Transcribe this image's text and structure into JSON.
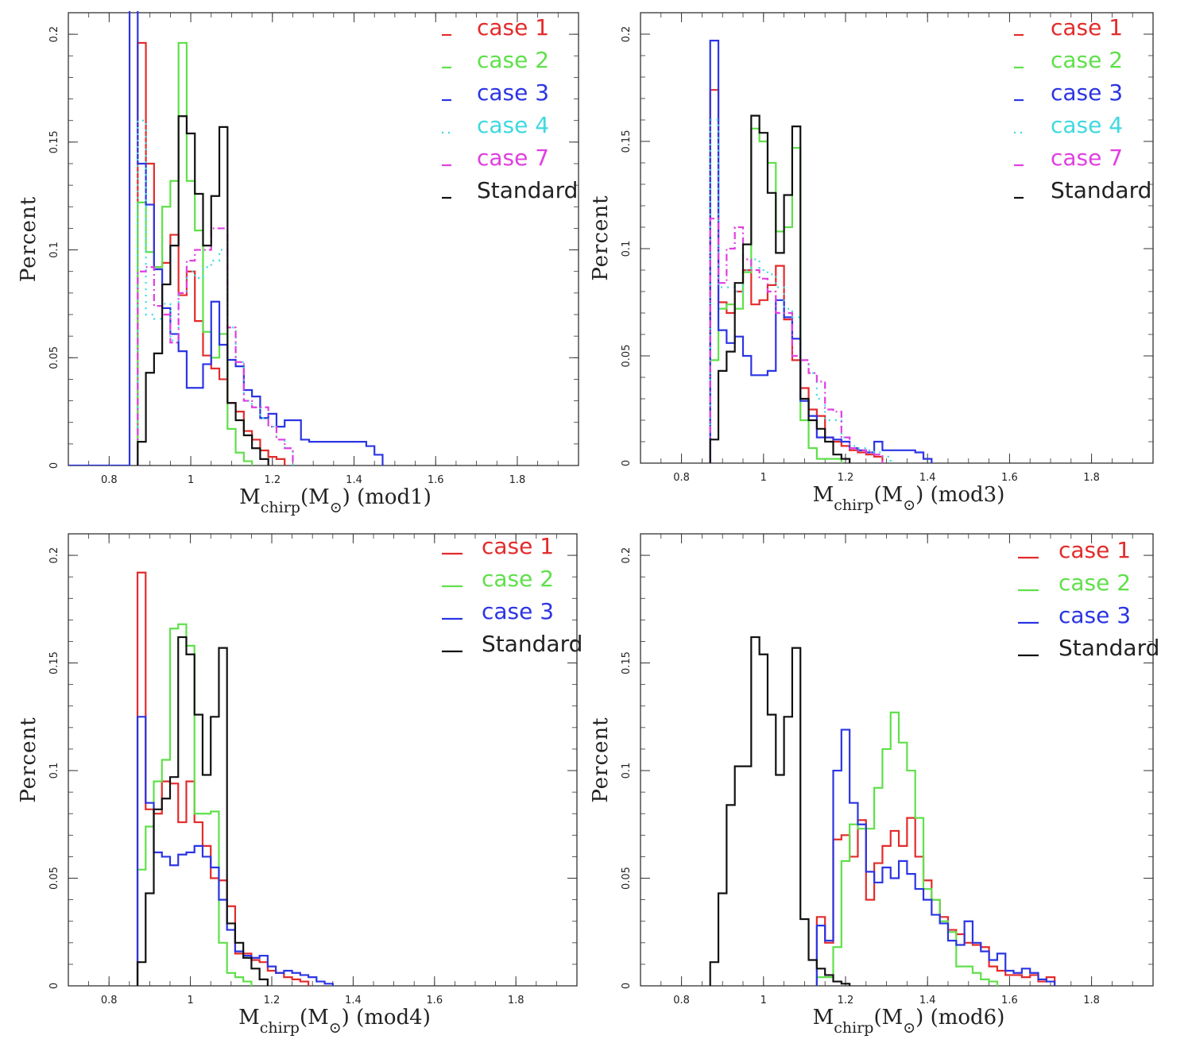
{
  "chart_data": [
    {
      "type": "histogram",
      "panel": "mod1",
      "xlabel": "M_chirp(M_⊙) (mod1)",
      "xlabel_parts": {
        "main": "M",
        "sub": "chirp",
        "paren_open": "(M",
        "sun_sub": "⊙",
        "paren_close": ")",
        "model": " (mod1)"
      },
      "ylabel": "Percent",
      "xlim": [
        0.7,
        1.95
      ],
      "ylim": [
        0,
        0.21
      ],
      "xticks": [
        "0.8",
        "1",
        "1.2",
        "1.4",
        "1.6",
        "1.8"
      ],
      "yticks": [
        "0",
        "0.05",
        "0.1",
        "0.15",
        "0.2"
      ],
      "legend_position": "top-right",
      "bin_start": 0.87,
      "bin_width": 0.02,
      "series": [
        {
          "name": "case 1",
          "color": "#e32b2b",
          "style": "solid",
          "values": [
            0.196,
            0.14,
            0.092,
            0.094,
            0.107,
            0.079,
            0.09,
            0.067,
            0.051,
            0.045,
            0.04,
            0.029,
            0.025,
            0.016,
            0.012,
            0.007,
            0.004,
            0.003
          ]
        },
        {
          "name": "case 2",
          "color": "#5fe04a",
          "style": "solid",
          "values": [
            0.122,
            0.099,
            0.092,
            0.12,
            0.132,
            0.196,
            0.132,
            0.109,
            0.062,
            0.05,
            0.061,
            0.017,
            0.006,
            0.002
          ]
        },
        {
          "name": "case 3",
          "color": "#2b35e3",
          "style": "solid",
          "pre_spike_from": 0.7,
          "spike_at": 0.85,
          "values": [
            0.14,
            0.121,
            0.091,
            0.073,
            0.061,
            0.053,
            0.036,
            0.036,
            0.047,
            0.076,
            0.056,
            0.049,
            0.046,
            0.035,
            0.032,
            0.022,
            0.024,
            0.018,
            0.021,
            0.021,
            0.012,
            0.011,
            0.011,
            0.011,
            0.011,
            0.011,
            0.011,
            0.011,
            0.009,
            0.005
          ]
        },
        {
          "name": "case 4",
          "color": "#3fd9e0",
          "style": "dotted",
          "values": [
            0.16,
            0.07,
            0.068,
            0.075,
            0.058,
            0.08,
            0.09,
            0.087,
            0.092,
            0.095,
            0.1,
            0.064,
            0.048,
            0.03,
            0.027,
            0.022,
            0.018,
            0.012,
            0.008
          ]
        },
        {
          "name": "case 7",
          "color": "#e03fe0",
          "style": "dashdot",
          "values": [
            0.09,
            0.092,
            0.074,
            0.07,
            0.057,
            0.08,
            0.095,
            0.1,
            0.1,
            0.11,
            0.11,
            0.064,
            0.048,
            0.03,
            0.027,
            0.027,
            0.018,
            0.012,
            0.008
          ]
        },
        {
          "name": "Standard",
          "color": "#111111",
          "style": "solid",
          "values": [
            0.011,
            0.043,
            0.052,
            0.084,
            0.102,
            0.162,
            0.154,
            0.126,
            0.102,
            0.125,
            0.157,
            0.029,
            0.021,
            0.014,
            0.008,
            0.003
          ]
        }
      ]
    },
    {
      "type": "histogram",
      "panel": "mod3",
      "xlabel": "M_chirp(M_⊙) (mod3)",
      "xlabel_parts": {
        "main": "M",
        "sub": "chirp",
        "paren_open": "(M",
        "sun_sub": "⊙",
        "paren_close": ")",
        "model": " (mod3)"
      },
      "ylabel": "Percent",
      "xlim": [
        0.7,
        1.95
      ],
      "ylim": [
        0,
        0.21
      ],
      "xticks": [
        "0.8",
        "1",
        "1.2",
        "1.4",
        "1.6",
        "1.8"
      ],
      "yticks": [
        "0",
        "0.05",
        "0.1",
        "0.15",
        "0.2"
      ],
      "legend_position": "top-right",
      "bin_start": 0.87,
      "bin_width": 0.02,
      "series": [
        {
          "name": "case 1",
          "color": "#e32b2b",
          "style": "solid",
          "values": [
            0.174,
            0.075,
            0.07,
            0.08,
            0.09,
            0.074,
            0.076,
            0.083,
            0.092,
            0.067,
            0.048,
            0.035,
            0.025,
            0.022,
            0.012,
            0.01,
            0.008,
            0.006,
            0.005,
            0.004,
            0.003
          ]
        },
        {
          "name": "case 2",
          "color": "#5fe04a",
          "style": "solid",
          "values": [
            0.048,
            0.072,
            0.074,
            0.072,
            0.089,
            0.156,
            0.15,
            0.14,
            0.108,
            0.11,
            0.147,
            0.02,
            0.007,
            0.002,
            0.002,
            0.002
          ]
        },
        {
          "name": "case 3",
          "color": "#2b35e3",
          "style": "solid",
          "values": [
            0.197,
            0.062,
            0.056,
            0.059,
            0.05,
            0.041,
            0.041,
            0.043,
            0.076,
            0.068,
            0.058,
            0.029,
            0.022,
            0.012,
            0.012,
            0.011,
            0.01,
            0.007,
            0.006,
            0.005,
            0.01,
            0.006,
            0.006,
            0.006,
            0.006,
            0.005,
            0.002
          ]
        },
        {
          "name": "case 4",
          "color": "#3fd9e0",
          "style": "dotted",
          "values": [
            0.16,
            0.082,
            0.082,
            0.08,
            0.09,
            0.095,
            0.09,
            0.088,
            0.082,
            0.072,
            0.068,
            0.048,
            0.042,
            0.03,
            0.02,
            0.02,
            0.012,
            0.008,
            0.007,
            0.006,
            0.005,
            0.003
          ]
        },
        {
          "name": "case 7",
          "color": "#e03fe0",
          "style": "dashdot",
          "values": [
            0.114,
            0.084,
            0.1,
            0.11,
            0.095,
            0.09,
            0.086,
            0.08,
            0.07,
            0.07,
            0.05,
            0.048,
            0.042,
            0.038,
            0.025,
            0.024,
            0.012,
            0.007,
            0.006,
            0.005,
            0.004
          ]
        },
        {
          "name": "Standard",
          "color": "#111111",
          "style": "solid",
          "values": [
            0.011,
            0.043,
            0.052,
            0.084,
            0.102,
            0.162,
            0.154,
            0.126,
            0.098,
            0.125,
            0.157,
            0.03,
            0.02,
            0.016,
            0.01,
            0.004,
            0.002
          ]
        }
      ]
    },
    {
      "type": "histogram",
      "panel": "mod4",
      "xlabel": "M_chirp(M_⊙) (mod4)",
      "xlabel_parts": {
        "main": "M",
        "sub": "chirp",
        "paren_open": "(M",
        "sun_sub": "⊙",
        "paren_close": ")",
        "model": " (mod4)"
      },
      "ylabel": "Percent",
      "xlim": [
        0.7,
        1.95
      ],
      "ylim": [
        0,
        0.21
      ],
      "xticks": [
        "0.8",
        "1",
        "1.2",
        "1.4",
        "1.6",
        "1.8"
      ],
      "yticks": [
        "0",
        "0.05",
        "0.1",
        "0.15",
        "0.2"
      ],
      "legend_position": "top-right",
      "bin_start": 0.87,
      "bin_width": 0.02,
      "series": [
        {
          "name": "case 1",
          "color": "#e32b2b",
          "style": "solid",
          "values": [
            0.192,
            0.082,
            0.08,
            0.095,
            0.094,
            0.076,
            0.095,
            0.076,
            0.065,
            0.05,
            0.049,
            0.037,
            0.015,
            0.015,
            0.012,
            0.011,
            0.007,
            0.006,
            0.004,
            0.003,
            0.002
          ]
        },
        {
          "name": "case 2",
          "color": "#5fe04a",
          "style": "solid",
          "values": [
            0.054,
            0.074,
            0.095,
            0.105,
            0.166,
            0.168,
            0.158,
            0.08,
            0.08,
            0.081,
            0.02,
            0.006,
            0.004,
            0.002
          ]
        },
        {
          "name": "case 3",
          "color": "#2b35e3",
          "style": "solid",
          "values": [
            0.125,
            0.085,
            0.062,
            0.06,
            0.056,
            0.061,
            0.062,
            0.065,
            0.06,
            0.055,
            0.04,
            0.026,
            0.016,
            0.014,
            0.013,
            0.014,
            0.009,
            0.006,
            0.007,
            0.006,
            0.005,
            0.004,
            0.002,
            0.001
          ]
        },
        {
          "name": "Standard",
          "color": "#111111",
          "style": "solid",
          "values": [
            0.011,
            0.043,
            0.082,
            0.087,
            0.097,
            0.162,
            0.154,
            0.126,
            0.098,
            0.125,
            0.157,
            0.029,
            0.02,
            0.013,
            0.008,
            0.003
          ]
        }
      ]
    },
    {
      "type": "histogram",
      "panel": "mod6",
      "xlabel": "M_chirp(M_⊙) (mod6)",
      "xlabel_parts": {
        "main": "M",
        "sub": "chirp",
        "paren_open": "(M",
        "sun_sub": "⊙",
        "paren_close": ")",
        "model": " (mod6)"
      },
      "ylabel": "Percent",
      "xlim": [
        0.7,
        1.95
      ],
      "ylim": [
        0,
        0.21
      ],
      "xticks": [
        "0.8",
        "1",
        "1.2",
        "1.4",
        "1.6",
        "1.8"
      ],
      "yticks": [
        "0",
        "0.05",
        "0.1",
        "0.15",
        "0.2"
      ],
      "legend_position": "top-right",
      "bin_start": 1.13,
      "bin_width": 0.02,
      "series": [
        {
          "name": "case 1",
          "color": "#e32b2b",
          "style": "solid",
          "values": [
            0.032,
            0.02,
            0.068,
            0.07,
            0.06,
            0.077,
            0.04,
            0.057,
            0.065,
            0.072,
            0.065,
            0.078,
            0.06,
            0.049,
            0.04,
            0.032,
            0.026,
            0.024,
            0.02,
            0.019,
            0.018,
            0.009,
            0.007,
            0.005,
            0.005,
            0.004,
            0.005,
            0.002,
            0.004
          ]
        },
        {
          "name": "case 2",
          "color": "#5fe04a",
          "style": "solid",
          "values": [
            0.004,
            0.004,
            0.018,
            0.058,
            0.075,
            0.073,
            0.073,
            0.092,
            0.11,
            0.127,
            0.113,
            0.1,
            0.078,
            0.045,
            0.04,
            0.03,
            0.025,
            0.009,
            0.009,
            0.006,
            0.003,
            0.002
          ]
        },
        {
          "name": "case 3",
          "color": "#2b35e3",
          "style": "solid",
          "values": [
            0.028,
            0.021,
            0.1,
            0.119,
            0.085,
            0.075,
            0.053,
            0.048,
            0.055,
            0.05,
            0.058,
            0.052,
            0.045,
            0.04,
            0.033,
            0.029,
            0.021,
            0.019,
            0.03,
            0.02,
            0.016,
            0.012,
            0.015,
            0.007,
            0.006,
            0.008,
            0.006,
            0.003,
            0.002
          ]
        },
        {
          "name": "Standard",
          "color": "#111111",
          "style": "solid",
          "bin_start": 0.87,
          "values": [
            0.011,
            0.043,
            0.084,
            0.102,
            0.102,
            0.162,
            0.154,
            0.126,
            0.098,
            0.125,
            0.157,
            0.031,
            0.012,
            0.008,
            0.005,
            0.002,
            0.001
          ]
        }
      ]
    }
  ]
}
